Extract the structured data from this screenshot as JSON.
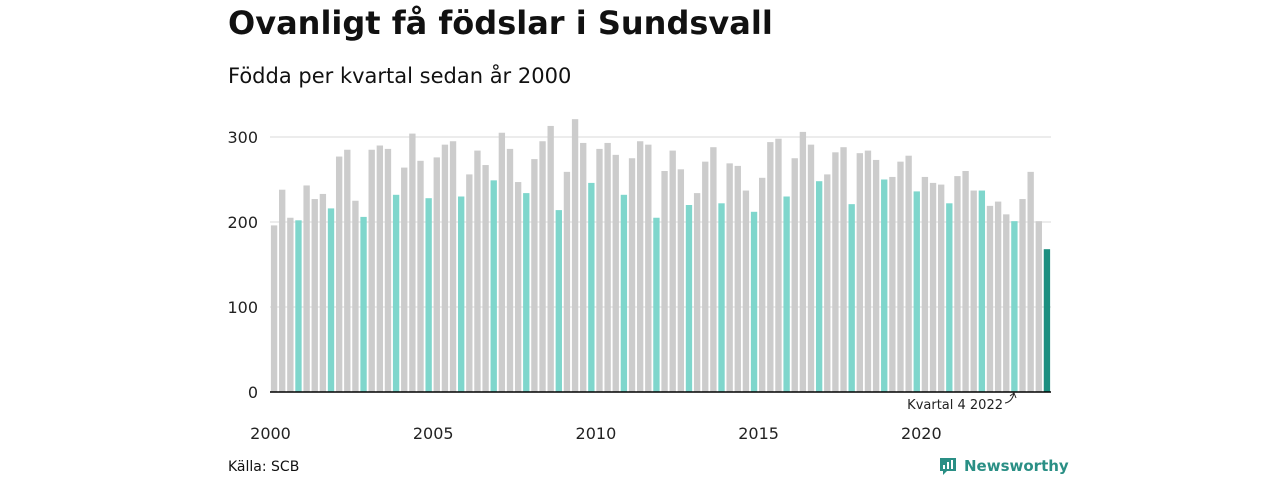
{
  "title": "Ovanligt få födslar i Sundsvall",
  "subtitle": "Födda per kvartal sedan år 2000",
  "source": "Källa: SCB",
  "brand": {
    "name": "Newsworthy",
    "icon": "newsworthy-logo-icon",
    "color": "#2a8f85"
  },
  "colors": {
    "default": "#cccccc",
    "highlight": "#7fd6cc",
    "latest": "#1b8f80",
    "grid": "#d9d9d9",
    "axis": "#000000"
  },
  "chart_data": {
    "type": "bar",
    "title": "Ovanligt få födslar i Sundsvall",
    "subtitle": "Födda per kvartal sedan år 2000",
    "ylim": [
      0,
      330
    ],
    "yticks": [
      0,
      100,
      200,
      300
    ],
    "xticks": [
      "2000",
      "2005",
      "2010",
      "2015",
      "2020"
    ],
    "grid": true,
    "highlight_rule": "same quarter as latest (Q4) highlighted",
    "annotation": "Kvartal 4 2022",
    "values": [
      196,
      238,
      205,
      202,
      243,
      227,
      233,
      216,
      277,
      285,
      225,
      206,
      285,
      290,
      286,
      232,
      264,
      304,
      272,
      228,
      276,
      291,
      295,
      230,
      256,
      284,
      267,
      249,
      305,
      286,
      247,
      234,
      274,
      295,
      313,
      214,
      259,
      321,
      293,
      246,
      286,
      293,
      279,
      232,
      275,
      295,
      291,
      205,
      260,
      284,
      262,
      220,
      234,
      271,
      288,
      222,
      269,
      266,
      237,
      212,
      252,
      294,
      298,
      230,
      275,
      306,
      291,
      248,
      256,
      282,
      288,
      221,
      281,
      284,
      273,
      250,
      253,
      271,
      278,
      236,
      253,
      246,
      244,
      222,
      254,
      260,
      237,
      237,
      219,
      224,
      209,
      201,
      227,
      259,
      201,
      168
    ]
  }
}
